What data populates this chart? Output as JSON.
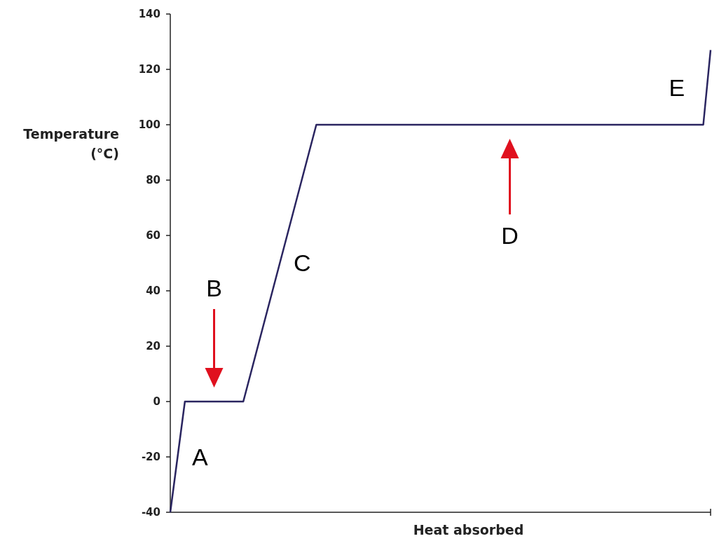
{
  "chart_data": {
    "type": "line",
    "xlabel": "Heat absorbed",
    "ylabel": "Temperature (°C)",
    "categories": [
      null,
      null,
      null,
      null,
      null,
      null,
      null,
      null,
      null,
      null,
      null,
      null,
      null,
      null,
      null,
      null,
      null,
      null,
      null,
      null,
      null,
      null,
      null,
      null,
      null,
      null,
      null,
      null,
      null,
      null,
      null,
      null,
      null,
      null,
      null,
      null,
      null,
      null,
      null,
      null,
      null,
      null,
      null,
      null,
      null,
      null,
      null,
      null,
      null,
      null,
      null,
      null,
      null,
      null,
      null,
      null,
      null,
      null,
      null,
      null,
      null,
      null,
      null,
      null,
      null,
      null,
      null,
      null,
      null,
      null,
      null,
      null,
      null,
      null,
      null
    ],
    "series": [
      {
        "color": "#2a2560",
        "values": [
          -40,
          -20,
          0,
          0,
          0,
          0,
          0,
          0,
          0,
          0,
          0,
          10,
          20,
          30,
          40,
          50,
          60,
          70,
          80,
          90,
          100,
          100,
          100,
          100,
          100,
          100,
          100,
          100,
          100,
          100,
          100,
          100,
          100,
          100,
          100,
          100,
          100,
          100,
          100,
          100,
          100,
          100,
          100,
          100,
          100,
          100,
          100,
          100,
          100,
          100,
          100,
          100,
          100,
          100,
          100,
          100,
          100,
          100,
          100,
          100,
          100,
          100,
          100,
          100,
          100,
          100,
          100,
          100,
          100,
          100,
          100,
          100,
          100,
          100,
          127
        ]
      }
    ],
    "ylim": [
      -40,
      140
    ],
    "yticks": [
      -40,
      -20,
      0,
      20,
      40,
      60,
      80,
      100,
      120,
      140
    ],
    "tick_labels": "y",
    "grid": false,
    "marker": "none",
    "line_style": "solid",
    "annotations": [
      "A",
      "B",
      "C",
      "D",
      "E"
    ]
  }
}
